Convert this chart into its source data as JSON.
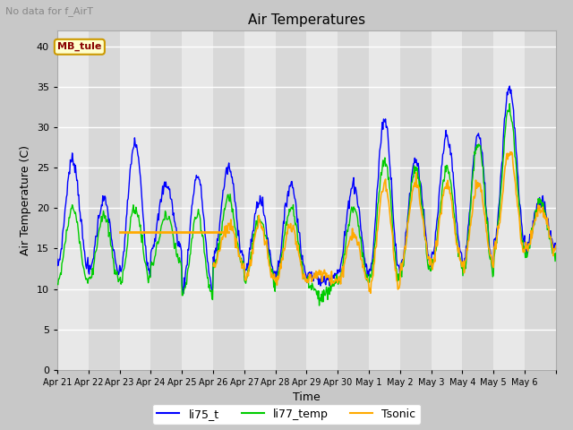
{
  "title": "Air Temperatures",
  "suptitle": "No data for f_AirT",
  "xlabel": "Time",
  "ylabel": "Air Temperature (C)",
  "ylim": [
    0,
    42
  ],
  "yticks": [
    0,
    5,
    10,
    15,
    20,
    25,
    30,
    35,
    40
  ],
  "fig_bg_color": "#c8c8c8",
  "plot_bg_color": "#e8e8e8",
  "mb_tule_value": 17.0,
  "mb_tule_label": "MB_tule",
  "mb_tule_color": "#ffaa00",
  "mb_tule_box_facecolor": "#ffffcc",
  "mb_tule_box_edgecolor": "#cc9900",
  "line_li75_color": "#0000ff",
  "line_li77_color": "#00cc00",
  "line_tsonic_color": "#ffaa00",
  "legend_labels": [
    "li75_t",
    "li77_temp",
    "Tsonic"
  ],
  "num_days": 16,
  "day_labels": [
    "Apr 21",
    "Apr 22",
    "Apr 23",
    "Apr 24",
    "Apr 25",
    "Apr 26",
    "Apr 27",
    "Apr 28",
    "Apr 29",
    "Apr 30",
    "May 1",
    "May 2",
    "May 3",
    "May 4",
    "May 5",
    "May 6"
  ],
  "band_colors": [
    "#e8e8e8",
    "#d8d8d8"
  ]
}
